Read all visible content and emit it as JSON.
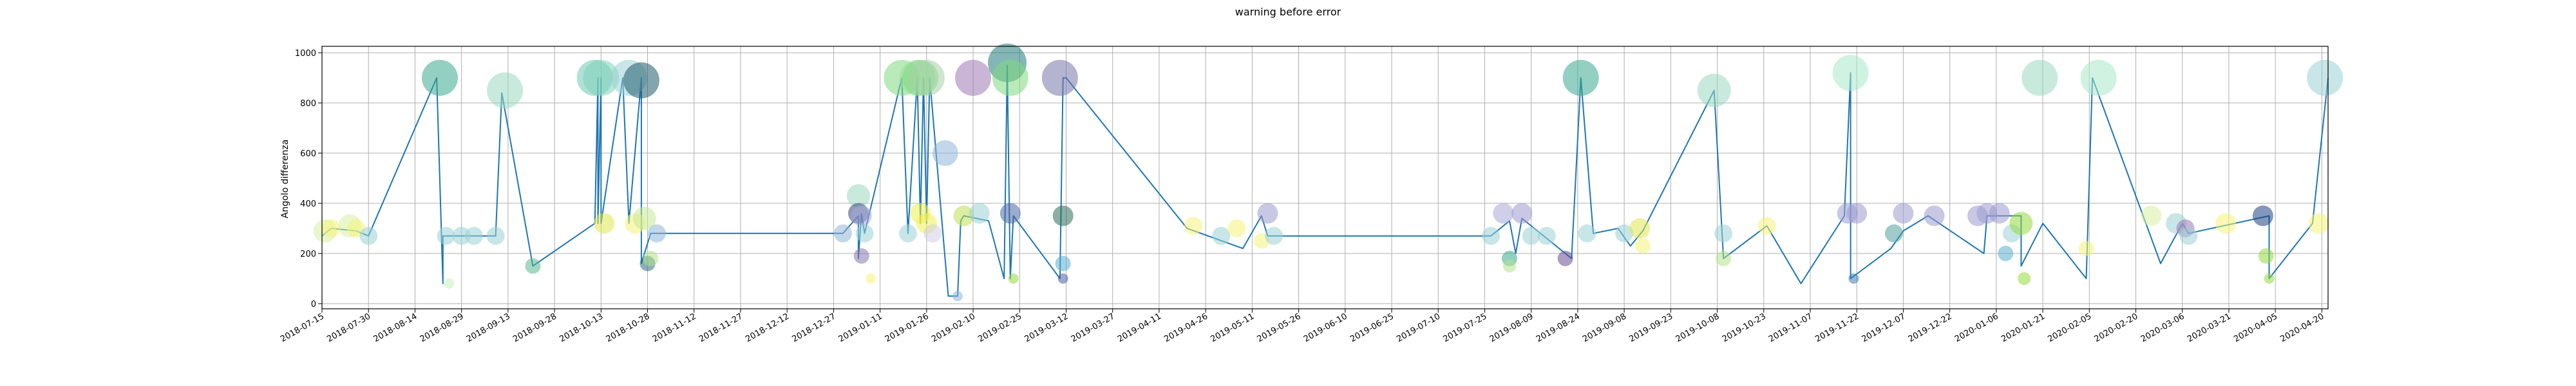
{
  "chart_data": {
    "type": "scatter",
    "title": "warning before error",
    "xlabel": "",
    "ylabel": "Angolo differenza",
    "ylim": [
      0,
      1000
    ],
    "yticks": [
      0,
      200,
      400,
      600,
      800,
      1000
    ],
    "xlim": [
      "2018-07-15",
      "2020-04-22"
    ],
    "xticks": [
      "2018-07-15",
      "2018-07-30",
      "2018-08-14",
      "2018-08-29",
      "2018-09-13",
      "2018-09-28",
      "2018-10-13",
      "2018-10-28",
      "2018-11-12",
      "2018-11-27",
      "2018-12-12",
      "2018-12-27",
      "2019-01-11",
      "2019-01-26",
      "2019-02-10",
      "2019-02-25",
      "2019-03-12",
      "2019-03-27",
      "2019-04-11",
      "2019-04-26",
      "2019-05-11",
      "2019-05-26",
      "2019-06-10",
      "2019-06-25",
      "2019-07-10",
      "2019-07-25",
      "2019-08-09",
      "2019-08-24",
      "2019-09-08",
      "2019-09-23",
      "2019-10-08",
      "2019-10-23",
      "2019-11-07",
      "2019-11-22",
      "2019-12-07",
      "2019-12-22",
      "2020-01-06",
      "2020-01-21",
      "2020-02-05",
      "2020-02-20",
      "2020-03-06",
      "2020-03-21",
      "2020-04-05",
      "2020-04-20"
    ],
    "grid": true,
    "line": {
      "color": "#1f77b4",
      "x": [
        "2018-07-15",
        "2018-07-18",
        "2018-07-26",
        "2018-07-30",
        "2018-08-21",
        "2018-08-23",
        "2018-08-23",
        "2018-09-09",
        "2018-09-11",
        "2018-09-21",
        "2018-10-11",
        "2018-10-12",
        "2018-10-12",
        "2018-10-13",
        "2018-10-13",
        "2018-10-20",
        "2018-10-22",
        "2018-10-26",
        "2018-10-26",
        "2018-10-29",
        "2018-12-30",
        "2019-01-04",
        "2019-01-04",
        "2019-01-05",
        "2019-01-06",
        "2019-01-18",
        "2019-01-20",
        "2019-01-23",
        "2019-01-24",
        "2019-01-25",
        "2019-01-26",
        "2019-01-27",
        "2019-02-02",
        "2019-02-05",
        "2019-02-06",
        "2019-02-07",
        "2019-02-15",
        "2019-02-20",
        "2019-02-21",
        "2019-02-22",
        "2019-02-23",
        "2019-03-10",
        "2019-03-11",
        "2019-03-12",
        "2019-04-20",
        "2019-05-08",
        "2019-05-14",
        "2019-05-16",
        "2019-07-27",
        "2019-08-02",
        "2019-08-04",
        "2019-08-06",
        "2019-08-22",
        "2019-08-25",
        "2019-08-29",
        "2019-09-06",
        "2019-09-10",
        "2019-09-14",
        "2019-10-07",
        "2019-10-10",
        "2019-10-24",
        "2019-11-04",
        "2019-11-18",
        "2019-11-20",
        "2019-11-20",
        "2019-12-03",
        "2019-12-07",
        "2019-12-15",
        "2020-01-02",
        "2020-01-03",
        "2020-01-14",
        "2020-01-14",
        "2020-01-21",
        "2020-02-04",
        "2020-02-06",
        "2020-02-28",
        "2020-03-06",
        "2020-03-08",
        "2020-04-03",
        "2020-04-03",
        "2020-04-17",
        "2020-04-22"
      ],
      "y": [
        270,
        300,
        290,
        270,
        900,
        80,
        270,
        270,
        840,
        150,
        320,
        900,
        320,
        900,
        320,
        900,
        320,
        900,
        160,
        280,
        280,
        350,
        180,
        360,
        280,
        900,
        280,
        900,
        320,
        900,
        320,
        900,
        30,
        30,
        330,
        350,
        330,
        100,
        950,
        100,
        350,
        100,
        900,
        900,
        300,
        220,
        350,
        270,
        270,
        330,
        200,
        340,
        180,
        900,
        280,
        300,
        230,
        290,
        850,
        180,
        310,
        80,
        350,
        920,
        100,
        220,
        290,
        350,
        200,
        350,
        350,
        150,
        320,
        100,
        900,
        160,
        320,
        280,
        350,
        100,
        320,
        900
      ]
    },
    "points": {
      "x": [
        "2018-07-16",
        "2018-07-18",
        "2018-07-24",
        "2018-07-26",
        "2018-07-30",
        "2018-08-22",
        "2018-08-24",
        "2018-08-25",
        "2018-08-29",
        "2018-09-02",
        "2018-09-09",
        "2018-09-12",
        "2018-09-21",
        "2018-10-11",
        "2018-10-13",
        "2018-10-14",
        "2018-10-22",
        "2018-10-24",
        "2018-10-26",
        "2018-10-27",
        "2018-10-28",
        "2018-10-29",
        "2018-10-31",
        "2018-12-30",
        "2019-01-04",
        "2019-01-04",
        "2019-01-05",
        "2019-01-05",
        "2019-01-06",
        "2019-01-08",
        "2019-01-18",
        "2019-01-20",
        "2019-01-23",
        "2019-01-24",
        "2019-01-24",
        "2019-01-26",
        "2019-01-26",
        "2019-01-28",
        "2019-02-01",
        "2019-02-05",
        "2019-02-07",
        "2019-02-10",
        "2019-02-12",
        "2019-02-21",
        "2019-02-22",
        "2019-02-22",
        "2019-02-23",
        "2019-03-10",
        "2019-03-11",
        "2019-03-11",
        "2019-03-11",
        "2019-04-22",
        "2019-05-01",
        "2019-05-06",
        "2019-05-14",
        "2019-05-16",
        "2019-05-18",
        "2019-07-27",
        "2019-07-31",
        "2019-08-02",
        "2019-08-02",
        "2019-08-06",
        "2019-08-09",
        "2019-08-14",
        "2019-08-20",
        "2019-08-25",
        "2019-08-27",
        "2019-09-08",
        "2019-09-13",
        "2019-09-14",
        "2019-10-07",
        "2019-10-10",
        "2019-10-10",
        "2019-10-24",
        "2019-11-19",
        "2019-11-20",
        "2019-11-21",
        "2019-11-22",
        "2019-12-04",
        "2019-12-07",
        "2019-12-17",
        "2019-12-31",
        "2020-01-03",
        "2020-01-07",
        "2020-01-09",
        "2020-01-11",
        "2020-01-14",
        "2020-01-15",
        "2020-01-20",
        "2020-02-04",
        "2020-02-08",
        "2020-02-25",
        "2020-03-04",
        "2020-03-07",
        "2020-03-08",
        "2020-03-20",
        "2020-04-01",
        "2020-04-02",
        "2020-04-03",
        "2020-04-19",
        "2020-04-21"
      ],
      "y": [
        290,
        300,
        310,
        300,
        270,
        900,
        270,
        80,
        270,
        270,
        270,
        850,
        150,
        900,
        900,
        320,
        900,
        320,
        890,
        340,
        160,
        180,
        280,
        280,
        430,
        360,
        190,
        350,
        280,
        100,
        900,
        280,
        900,
        900,
        360,
        900,
        320,
        280,
        600,
        30,
        350,
        900,
        360,
        960,
        900,
        360,
        100,
        900,
        350,
        160,
        100,
        310,
        270,
        300,
        250,
        360,
        270,
        270,
        360,
        180,
        150,
        360,
        270,
        270,
        180,
        900,
        280,
        280,
        300,
        230,
        850,
        280,
        180,
        310,
        360,
        920,
        100,
        360,
        280,
        360,
        350,
        350,
        360,
        360,
        200,
        280,
        320,
        100,
        900,
        220,
        900,
        350,
        320,
        300,
        270,
        320,
        350,
        190,
        100,
        320,
        900
      ],
      "size": [
        18,
        14,
        18,
        14,
        14,
        28,
        14,
        8,
        14,
        14,
        14,
        28,
        12,
        28,
        28,
        16,
        28,
        16,
        28,
        18,
        12,
        12,
        14,
        14,
        18,
        16,
        12,
        16,
        14,
        8,
        28,
        14,
        28,
        28,
        16,
        28,
        16,
        14,
        20,
        8,
        16,
        28,
        16,
        30,
        28,
        16,
        8,
        28,
        16,
        12,
        8,
        14,
        14,
        14,
        12,
        16,
        14,
        14,
        16,
        12,
        10,
        16,
        14,
        14,
        12,
        28,
        14,
        14,
        16,
        12,
        26,
        14,
        12,
        14,
        16,
        28,
        8,
        16,
        14,
        16,
        16,
        16,
        16,
        16,
        12,
        14,
        18,
        10,
        28,
        12,
        28,
        16,
        16,
        14,
        14,
        16,
        16,
        12,
        8,
        16,
        28
      ],
      "color": [
        "#d9f0a3",
        "#f4f478",
        "#d9f0a3",
        "#f4f478",
        "#9ad2d6",
        "#3aa98f",
        "#9ad2d6",
        "#c9f0c0",
        "#9ad2d6",
        "#9ad2d6",
        "#9ad2d6",
        "#9bd9bf",
        "#59b88f",
        "#70c9b6",
        "#7fd1b8",
        "#e0e850",
        "#9ad2d6",
        "#f4f478",
        "#1f5a6b",
        "#c9e895",
        "#2c6e80",
        "#b3e28a",
        "#8fb6d9",
        "#8fb6d9",
        "#9bd9bf",
        "#34497a",
        "#8a76b0",
        "#a8a8d8",
        "#9ad2d6",
        "#f4f478",
        "#7fd97f",
        "#9ad2d6",
        "#9be0a0",
        "#7fd97f",
        "#f0f050",
        "#a8d0a8",
        "#f0f050",
        "#d0d0e8",
        "#8fb6d9",
        "#8fb6d9",
        "#c0e050",
        "#a079b5",
        "#9ad2d6",
        "#207a7a",
        "#7fd97f",
        "#4b68a3",
        "#95d840",
        "#7777aa",
        "#2e6b57",
        "#5aaed1",
        "#4a5fa0",
        "#f4f478",
        "#9ad2d6",
        "#f4f478",
        "#f4f478",
        "#9a9ad0",
        "#9ad2d6",
        "#9ad2d6",
        "#a8a8d8",
        "#3aa98f",
        "#b3e28a",
        "#9a9ad0",
        "#9ad2d6",
        "#9ad2d6",
        "#6a4c93",
        "#3aa98f",
        "#9ad2d6",
        "#9ad2d6",
        "#e0e850",
        "#f4f478",
        "#9bd9bf",
        "#9ad2d6",
        "#b3e28a",
        "#f4f478",
        "#9a9ad0",
        "#a8e8c8",
        "#3a7ab0",
        "#9a9ad0",
        "#50a0a0",
        "#9a9ad0",
        "#9a9ad0",
        "#9a9ad0",
        "#9a9ad0",
        "#9a9ad0",
        "#5aaed1",
        "#9ad2d6",
        "#95d840",
        "#95d840",
        "#9bd9bf",
        "#f4f478",
        "#a8e8c8",
        "#d9f0a3",
        "#9ad2d6",
        "#a079b5",
        "#9ad2d6",
        "#f4f478",
        "#1f3f7f",
        "#95d840",
        "#95d840",
        "#f4f478",
        "#9ad2d6"
      ]
    }
  }
}
